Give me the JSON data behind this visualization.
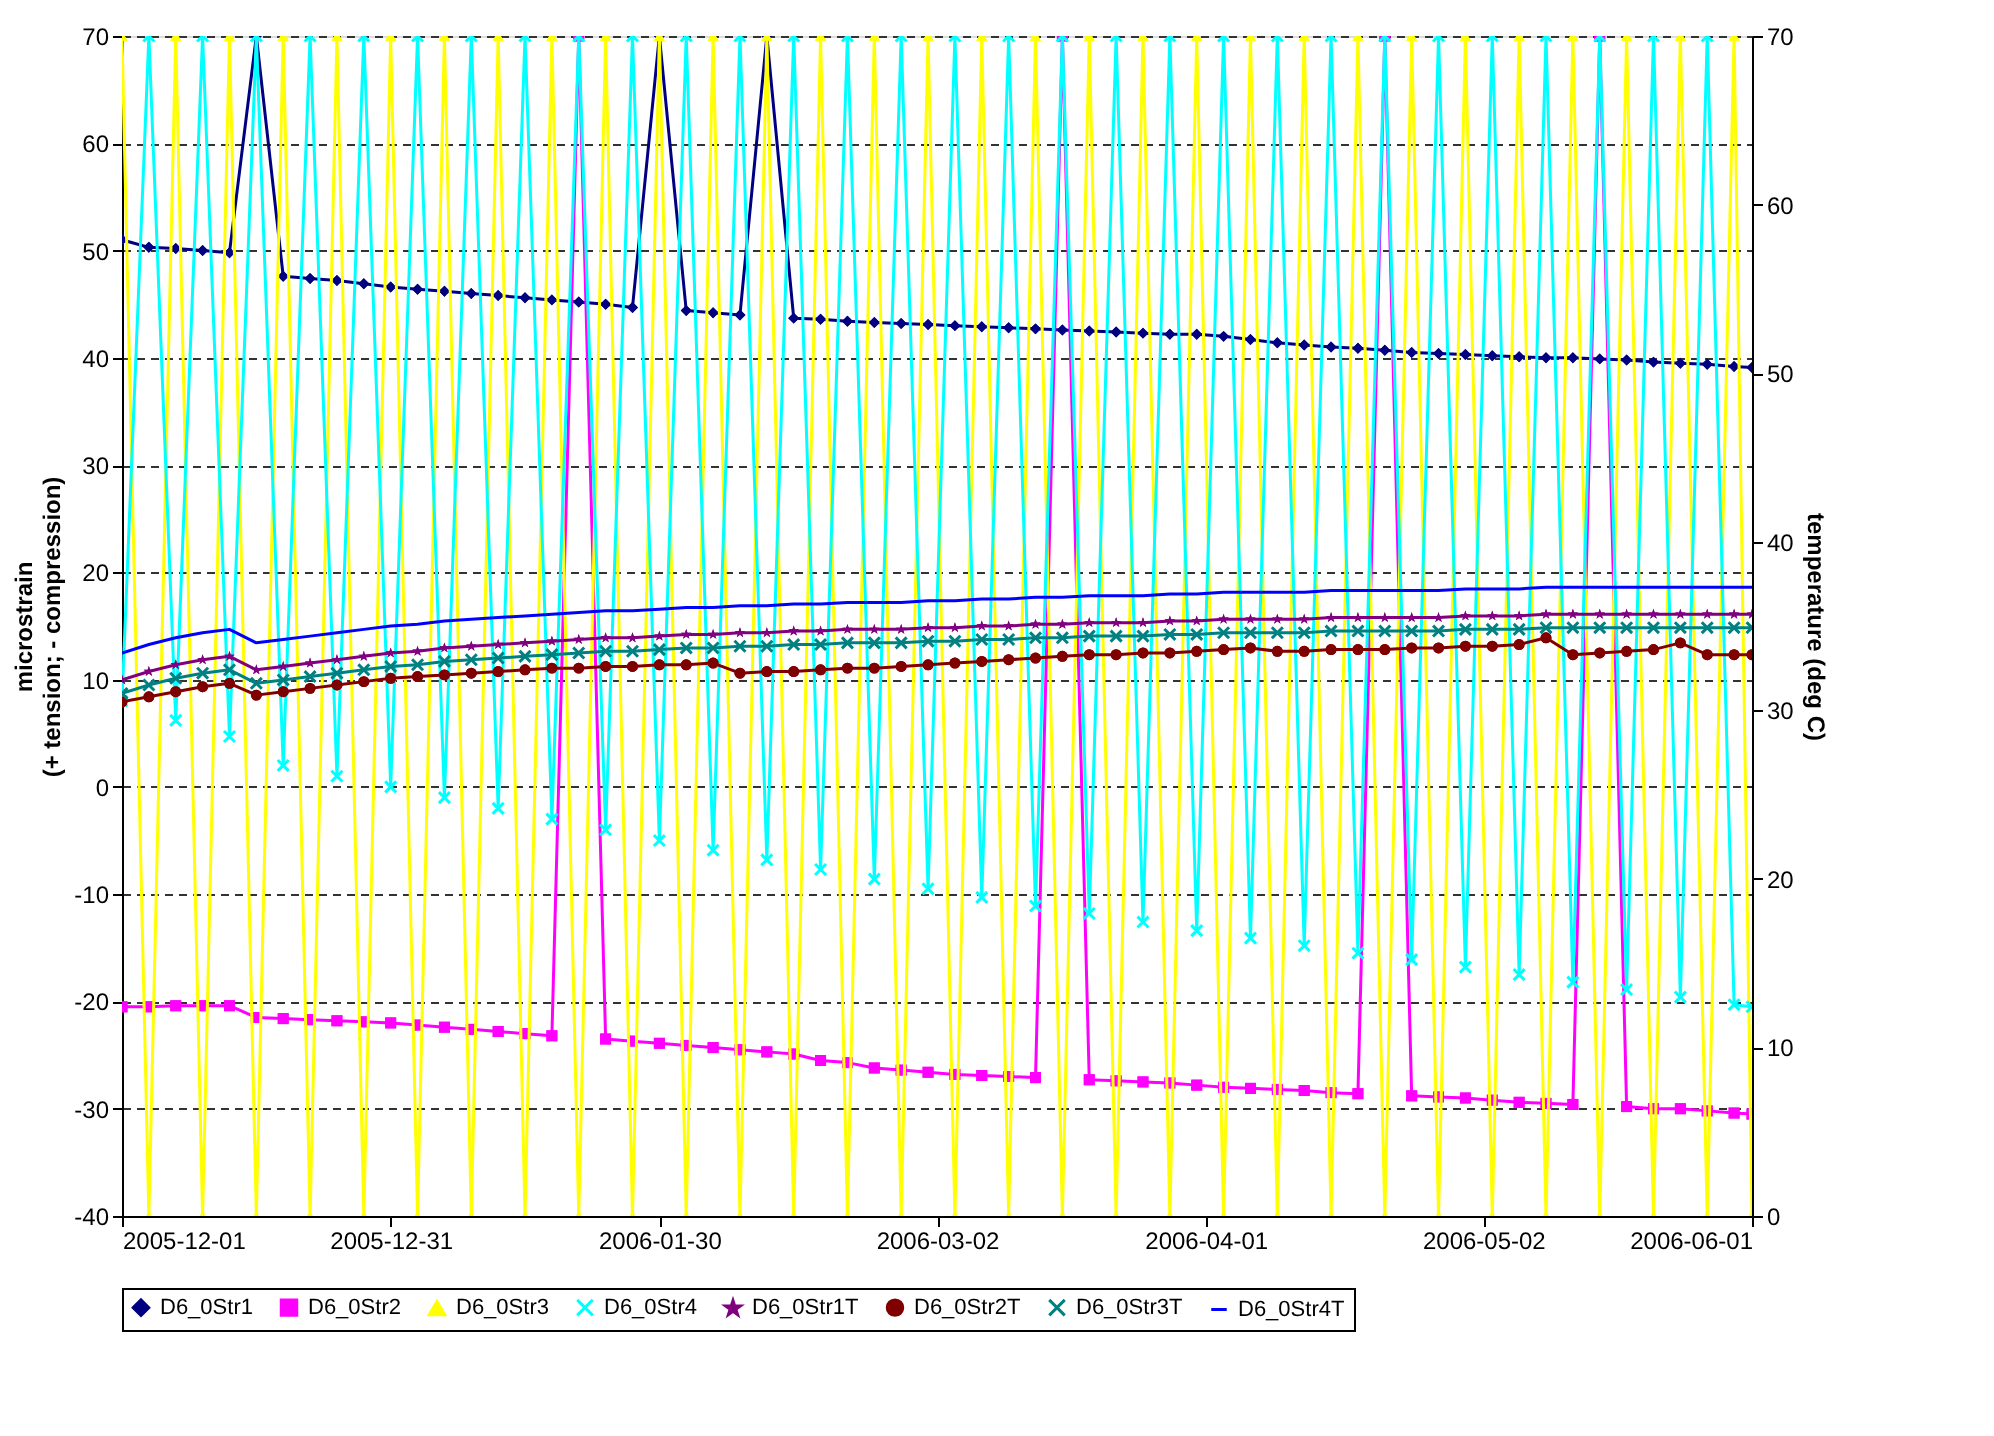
{
  "chart_data": {
    "type": "line",
    "ylabel": "microstrain\n(+ tension; - compression)",
    "y2label": "temperature (deg C)",
    "x": [
      "2005-12-01",
      "2005-12-04",
      "2005-12-07",
      "2005-12-10",
      "2005-12-13",
      "2005-12-16",
      "2005-12-19",
      "2005-12-22",
      "2005-12-25",
      "2005-12-28",
      "2005-12-31",
      "2006-01-03",
      "2006-01-06",
      "2006-01-09",
      "2006-01-12",
      "2006-01-15",
      "2006-01-18",
      "2006-01-21",
      "2006-01-24",
      "2006-01-27",
      "2006-01-30",
      "2006-02-02",
      "2006-02-05",
      "2006-02-08",
      "2006-02-11",
      "2006-02-14",
      "2006-02-17",
      "2006-02-20",
      "2006-02-23",
      "2006-02-26",
      "2006-03-01",
      "2006-03-04",
      "2006-03-07",
      "2006-03-10",
      "2006-03-13",
      "2006-03-16",
      "2006-03-19",
      "2006-03-22",
      "2006-03-25",
      "2006-03-28",
      "2006-03-31",
      "2006-04-03",
      "2006-04-06",
      "2006-04-09",
      "2006-04-12",
      "2006-04-15",
      "2006-04-18",
      "2006-04-21",
      "2006-04-24",
      "2006-04-27",
      "2006-04-30",
      "2006-05-03",
      "2006-05-06",
      "2006-05-09",
      "2006-05-12",
      "2006-05-15",
      "2006-05-18",
      "2006-05-21",
      "2006-05-24",
      "2006-05-27",
      "2006-05-30",
      "2006-06-01"
    ],
    "xlim": [
      "2005-12-01",
      "2006-06-01"
    ],
    "xticks": [
      "2005-12-01",
      "2005-12-31",
      "2006-01-30",
      "2006-03-02",
      "2006-04-01",
      "2006-05-02",
      "2006-06-01"
    ],
    "ylim": [
      -40,
      70
    ],
    "yticks": [
      -40,
      -30,
      -20,
      -10,
      0,
      10,
      20,
      30,
      40,
      50,
      60,
      70
    ],
    "y2lim": [
      0,
      70
    ],
    "y2ticks": [
      0,
      10,
      20,
      30,
      40,
      50,
      60,
      70
    ],
    "grid": "y",
    "legend": "bottom",
    "series": [
      {
        "name": "D6_0Str1",
        "color": "#000080",
        "marker": "diamond",
        "values": [
          51,
          50.3,
          50.2,
          50,
          49.8,
          70,
          47.6,
          47.4,
          47.2,
          46.9,
          46.6,
          46.4,
          46.2,
          46.0,
          45.8,
          45.6,
          45.4,
          45.2,
          45.0,
          44.7,
          70,
          44.4,
          44.2,
          44.0,
          70,
          43.7,
          43.6,
          43.4,
          43.3,
          43.2,
          43.1,
          43.0,
          42.9,
          42.8,
          42.7,
          42.6,
          42.5,
          42.4,
          42.3,
          42.2,
          42.2,
          42.0,
          41.7,
          41.4,
          41.2,
          41.0,
          40.9,
          40.7,
          40.5,
          40.4,
          40.3,
          40.2,
          40.1,
          40.0,
          40.0,
          39.9,
          39.8,
          39.6,
          39.5,
          39.4,
          39.2,
          39.1
        ]
      },
      {
        "name": "D6_0Str2",
        "color": "#ff00ff",
        "marker": "square",
        "values": [
          -20.5,
          -20.5,
          -20.4,
          -20.4,
          -20.4,
          -21.5,
          -21.6,
          -21.7,
          -21.8,
          -21.9,
          -22,
          -22.2,
          -22.4,
          -22.6,
          -22.8,
          -23,
          -23.2,
          70,
          -23.5,
          -23.7,
          -23.9,
          -24.1,
          -24.3,
          -24.5,
          -24.7,
          -24.9,
          -25.5,
          -25.7,
          -26.2,
          -26.4,
          -26.6,
          -26.8,
          -26.9,
          -27,
          -27.1,
          70,
          -27.3,
          -27.4,
          -27.5,
          -27.6,
          -27.8,
          -28,
          -28.1,
          -28.2,
          -28.3,
          -28.5,
          -28.6,
          70,
          -28.8,
          -28.9,
          -29,
          -29.2,
          -29.4,
          -29.5,
          -29.6,
          70,
          -29.8,
          -30,
          -30,
          -30.2,
          -30.4,
          -30.5
        ]
      },
      {
        "name": "D6_0Str3",
        "color": "#ffff00",
        "marker": "triangle",
        "values": [
          70,
          -40,
          70,
          -40,
          70,
          -40,
          70,
          -40,
          70,
          -40,
          70,
          -40,
          70,
          -40,
          70,
          -40,
          70,
          -40,
          70,
          -40,
          70,
          -40,
          70,
          -40,
          70,
          -40,
          70,
          -40,
          70,
          -40,
          70,
          -40,
          70,
          -40,
          70,
          -40,
          70,
          -40,
          70,
          -40,
          70,
          -40,
          70,
          -40,
          70,
          -40,
          70,
          -40,
          70,
          -40,
          70,
          -40,
          70,
          -40,
          70,
          -40,
          70,
          -40,
          70,
          -40,
          70,
          -40
        ]
      },
      {
        "name": "D6_0Str4",
        "color": "#00ffff",
        "marker": "cross",
        "values": [
          8,
          70,
          6.2,
          70,
          4.7,
          70,
          2,
          70,
          1,
          70,
          0,
          70,
          -1,
          70,
          -2,
          70,
          -3,
          70,
          -4,
          70,
          -5,
          70,
          -5.9,
          70,
          -6.8,
          70,
          -7.7,
          70,
          -8.6,
          70,
          -9.5,
          70,
          -10.3,
          70,
          -11.1,
          70,
          -11.8,
          70,
          -12.6,
          70,
          -13.4,
          70,
          -14.1,
          70,
          -14.8,
          70,
          -15.5,
          70,
          -16.1,
          70,
          -16.8,
          70,
          -17.5,
          70,
          -18.2,
          70,
          -18.9,
          70,
          -19.6,
          70,
          -20.3,
          -20.5
        ]
      },
      {
        "name": "D6_0Str1T",
        "color": "#800080",
        "marker": "star",
        "axis": "y2",
        "values": [
          31.8,
          32.3,
          32.7,
          33.0,
          33.2,
          32.4,
          32.6,
          32.8,
          33.0,
          33.2,
          33.4,
          33.5,
          33.7,
          33.8,
          33.9,
          34.0,
          34.1,
          34.2,
          34.3,
          34.3,
          34.4,
          34.5,
          34.5,
          34.6,
          34.6,
          34.7,
          34.7,
          34.8,
          34.8,
          34.8,
          34.9,
          34.9,
          35.0,
          35.0,
          35.1,
          35.1,
          35.2,
          35.2,
          35.2,
          35.3,
          35.3,
          35.4,
          35.4,
          35.4,
          35.4,
          35.5,
          35.5,
          35.5,
          35.5,
          35.5,
          35.6,
          35.6,
          35.6,
          35.7,
          35.7,
          35.7,
          35.7,
          35.7,
          35.7,
          35.7,
          35.7,
          35.7
        ]
      },
      {
        "name": "D6_0Str2T",
        "color": "#800000",
        "marker": "circle",
        "axis": "y2",
        "values": [
          30.5,
          30.8,
          31.1,
          31.4,
          31.6,
          30.9,
          31.1,
          31.3,
          31.5,
          31.7,
          31.9,
          32.0,
          32.1,
          32.2,
          32.3,
          32.4,
          32.5,
          32.5,
          32.6,
          32.6,
          32.7,
          32.7,
          32.8,
          32.2,
          32.3,
          32.3,
          32.4,
          32.5,
          32.5,
          32.6,
          32.7,
          32.8,
          32.9,
          33.0,
          33.1,
          33.2,
          33.3,
          33.3,
          33.4,
          33.4,
          33.5,
          33.6,
          33.7,
          33.5,
          33.5,
          33.6,
          33.6,
          33.6,
          33.7,
          33.7,
          33.8,
          33.8,
          33.9,
          34.3,
          33.3,
          33.4,
          33.5,
          33.6,
          34.0,
          33.3,
          33.3,
          33.3
        ]
      },
      {
        "name": "D6_0Str3T",
        "color": "#008080",
        "marker": "cross",
        "axis": "y2",
        "values": [
          31.0,
          31.5,
          31.9,
          32.2,
          32.4,
          31.6,
          31.8,
          32.0,
          32.2,
          32.4,
          32.6,
          32.7,
          32.9,
          33.0,
          33.1,
          33.2,
          33.3,
          33.4,
          33.5,
          33.5,
          33.6,
          33.7,
          33.7,
          33.8,
          33.8,
          33.9,
          33.9,
          34.0,
          34.0,
          34.0,
          34.1,
          34.1,
          34.2,
          34.2,
          34.3,
          34.3,
          34.4,
          34.4,
          34.4,
          34.5,
          34.5,
          34.6,
          34.6,
          34.6,
          34.6,
          34.7,
          34.7,
          34.7,
          34.7,
          34.7,
          34.8,
          34.8,
          34.8,
          34.9,
          34.9,
          34.9,
          34.9,
          34.9,
          34.9,
          34.9,
          34.9,
          34.9
        ]
      },
      {
        "name": "D6_0Str4T",
        "color": "#0000ff",
        "marker": "none",
        "axis": "y2",
        "values": [
          33.4,
          33.9,
          34.3,
          34.6,
          34.8,
          34.0,
          34.2,
          34.4,
          34.6,
          34.8,
          35.0,
          35.1,
          35.3,
          35.4,
          35.5,
          35.6,
          35.7,
          35.8,
          35.9,
          35.9,
          36.0,
          36.1,
          36.1,
          36.2,
          36.2,
          36.3,
          36.3,
          36.4,
          36.4,
          36.4,
          36.5,
          36.5,
          36.6,
          36.6,
          36.7,
          36.7,
          36.8,
          36.8,
          36.8,
          36.9,
          36.9,
          37.0,
          37.0,
          37.0,
          37.0,
          37.1,
          37.1,
          37.1,
          37.1,
          37.1,
          37.2,
          37.2,
          37.2,
          37.3,
          37.3,
          37.3,
          37.3,
          37.3,
          37.3,
          37.3,
          37.3,
          37.3
        ]
      }
    ]
  }
}
